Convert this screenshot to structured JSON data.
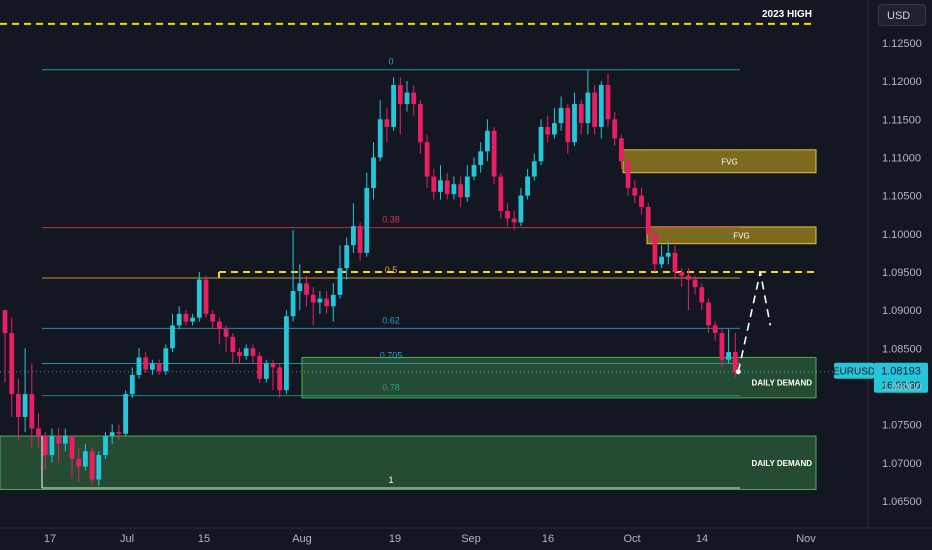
{
  "currency_button": "USD",
  "chart_data": {
    "type": "candlestick",
    "symbol": "EURUSD",
    "last_price": "1.08193",
    "countdown": "16:08:30",
    "y_ticks": [
      "1.12500",
      "1.12000",
      "1.11500",
      "1.11000",
      "1.10500",
      "1.10000",
      "1.09500",
      "1.09000",
      "1.08500",
      "1.08000",
      "1.07500",
      "1.07000",
      "1.06500"
    ],
    "y_range": [
      1.0625,
      1.1305
    ],
    "x_ticks": [
      "17",
      "Jul",
      "15",
      "Aug",
      "19",
      "Sep",
      "16",
      "Oct",
      "14",
      "Nov"
    ],
    "high_line": {
      "label": "2023 HIGH",
      "price": 1.1275,
      "color": "#f5d90a"
    },
    "breakout_line": {
      "price": 1.095,
      "color": "#f5d90a"
    },
    "fib_levels": [
      {
        "label": "0",
        "price": 1.1215,
        "color": "#2a9ec7"
      },
      {
        "label": "0.38",
        "price": 1.1008,
        "color": "#e0314f"
      },
      {
        "label": "0.5",
        "price": 1.0942,
        "color": "#f0a040"
      },
      {
        "label": "0.62",
        "price": 1.0876,
        "color": "#2a9ec7"
      },
      {
        "label": "0.705",
        "price": 1.083,
        "color": "#2a9ec7"
      },
      {
        "label": "0.78",
        "price": 1.0788,
        "color": "#1f9d8a"
      },
      {
        "label": "1",
        "price": 1.0667,
        "color": "#ffffff"
      }
    ],
    "zones": [
      {
        "label": "FVG",
        "kind": "fvg",
        "top": 1.111,
        "bottom": 1.108,
        "x_start": 623,
        "x_end": 816,
        "label_pos": "center"
      },
      {
        "label": "FVG",
        "kind": "fvg",
        "top": 1.1009,
        "bottom": 1.0987,
        "x_start": 647,
        "x_end": 816,
        "label_pos": "center"
      },
      {
        "label": "DAILY DEMAND",
        "kind": "demand",
        "top": 1.0838,
        "bottom": 1.0785,
        "x_start": 302,
        "x_end": 816,
        "label_pos": "right"
      },
      {
        "label": "DAILY DEMAND",
        "kind": "demand",
        "top": 1.0735,
        "bottom": 1.0665,
        "x_start": 0,
        "x_end": 816,
        "label_pos": "right"
      }
    ],
    "candles": [
      [
        1.09,
        1.087,
        1.089,
        1.0805
      ],
      [
        1.087,
        1.079,
        1.089,
        1.076
      ],
      [
        1.079,
        1.076,
        1.081,
        1.073
      ],
      [
        1.076,
        1.079,
        1.085,
        1.074
      ],
      [
        1.079,
        1.0745,
        1.083,
        1.072
      ],
      [
        1.0745,
        1.0735,
        1.0765,
        1.072
      ],
      [
        1.0735,
        1.071,
        1.074,
        1.069
      ],
      [
        1.071,
        1.0735,
        1.0745,
        1.07
      ],
      [
        1.0735,
        1.0725,
        1.0745,
        1.07
      ],
      [
        1.0725,
        1.0735,
        1.0745,
        1.0715
      ],
      [
        1.0735,
        1.0705,
        1.0735,
        1.068
      ],
      [
        1.0705,
        1.0695,
        1.072,
        1.0675
      ],
      [
        1.0695,
        1.0715,
        1.0725,
        1.069
      ],
      [
        1.0715,
        1.0678,
        1.072,
        1.067
      ],
      [
        1.0678,
        1.071,
        1.0715,
        1.067
      ],
      [
        1.071,
        1.0735,
        1.074,
        1.0705
      ],
      [
        1.0735,
        1.074,
        1.075,
        1.0725
      ],
      [
        1.074,
        1.0738,
        1.075,
        1.073
      ],
      [
        1.0738,
        1.079,
        1.0795,
        1.0735
      ],
      [
        1.079,
        1.0815,
        1.0825,
        1.0785
      ],
      [
        1.0815,
        1.0838,
        1.085,
        1.081
      ],
      [
        1.0838,
        1.0822,
        1.0845,
        1.0818
      ],
      [
        1.0822,
        1.083,
        1.0835,
        1.0815
      ],
      [
        1.083,
        1.082,
        1.0835,
        1.0815
      ],
      [
        1.082,
        1.085,
        1.0855,
        1.0815
      ],
      [
        1.085,
        1.088,
        1.0895,
        1.0845
      ],
      [
        1.088,
        1.0895,
        1.0905,
        1.0875
      ],
      [
        1.0895,
        1.0885,
        1.09,
        1.088
      ],
      [
        1.0885,
        1.089,
        1.0895,
        1.088
      ],
      [
        1.089,
        1.094,
        1.095,
        1.0885
      ],
      [
        1.094,
        1.0895,
        1.0945,
        1.089
      ],
      [
        1.0895,
        1.0885,
        1.09,
        1.0875
      ],
      [
        1.0885,
        1.0875,
        1.089,
        1.0855
      ],
      [
        1.0875,
        1.0865,
        1.088,
        1.0845
      ],
      [
        1.0865,
        1.0845,
        1.087,
        1.083
      ],
      [
        1.0845,
        1.084,
        1.085,
        1.083
      ],
      [
        1.084,
        1.085,
        1.0855,
        1.0835
      ],
      [
        1.085,
        1.084,
        1.0855,
        1.083
      ],
      [
        1.084,
        1.081,
        1.0845,
        1.0805
      ],
      [
        1.081,
        1.083,
        1.0835,
        1.0805
      ],
      [
        1.083,
        1.0825,
        1.0835,
        1.0795
      ],
      [
        1.0825,
        1.0795,
        1.083,
        1.0785
      ],
      [
        1.0795,
        1.0892,
        1.09,
        1.079
      ],
      [
        1.0892,
        1.0925,
        1.1005,
        1.0885
      ],
      [
        1.0925,
        1.0935,
        1.096,
        1.09
      ],
      [
        1.0935,
        1.092,
        1.0945,
        1.0905
      ],
      [
        1.092,
        1.091,
        1.093,
        1.088
      ],
      [
        1.091,
        1.0915,
        1.0925,
        1.0895
      ],
      [
        1.0915,
        1.0905,
        1.0925,
        1.0895
      ],
      [
        1.0905,
        1.092,
        1.0935,
        1.0885
      ],
      [
        1.092,
        1.0955,
        1.0985,
        1.0915
      ],
      [
        1.0955,
        1.0985,
        1.0995,
        1.094
      ],
      [
        1.0985,
        1.101,
        1.104,
        1.0975
      ],
      [
        1.101,
        1.0975,
        1.1015,
        1.0965
      ],
      [
        1.0975,
        1.106,
        1.108,
        1.097
      ],
      [
        1.106,
        1.11,
        1.112,
        1.1045
      ],
      [
        1.11,
        1.115,
        1.1175,
        1.1095
      ],
      [
        1.115,
        1.114,
        1.1165,
        1.112
      ],
      [
        1.114,
        1.1195,
        1.1205,
        1.1135
      ],
      [
        1.1195,
        1.117,
        1.1205,
        1.113
      ],
      [
        1.117,
        1.1185,
        1.12,
        1.116
      ],
      [
        1.1185,
        1.117,
        1.1195,
        1.1155
      ],
      [
        1.117,
        1.112,
        1.1175,
        1.1105
      ],
      [
        1.112,
        1.1075,
        1.113,
        1.106
      ],
      [
        1.1075,
        1.1055,
        1.1085,
        1.1045
      ],
      [
        1.1055,
        1.107,
        1.109,
        1.1045
      ],
      [
        1.107,
        1.1052,
        1.108,
        1.1045
      ],
      [
        1.1052,
        1.1065,
        1.1075,
        1.1045
      ],
      [
        1.1065,
        1.1048,
        1.1075,
        1.1035
      ],
      [
        1.1048,
        1.1075,
        1.109,
        1.1042
      ],
      [
        1.1075,
        1.109,
        1.11,
        1.107
      ],
      [
        1.109,
        1.1108,
        1.112,
        1.108
      ],
      [
        1.1108,
        1.1135,
        1.115,
        1.1095
      ],
      [
        1.1135,
        1.1075,
        1.114,
        1.1065
      ],
      [
        1.1075,
        1.103,
        1.108,
        1.102
      ],
      [
        1.103,
        1.102,
        1.104,
        1.101
      ],
      [
        1.102,
        1.1015,
        1.103,
        1.1005
      ],
      [
        1.1015,
        1.105,
        1.106,
        1.101
      ],
      [
        1.105,
        1.1075,
        1.1085,
        1.1045
      ],
      [
        1.1075,
        1.1095,
        1.1105,
        1.107
      ],
      [
        1.1095,
        1.114,
        1.115,
        1.109
      ],
      [
        1.114,
        1.113,
        1.1155,
        1.112
      ],
      [
        1.113,
        1.1145,
        1.1165,
        1.1125
      ],
      [
        1.1145,
        1.1165,
        1.118,
        1.1135
      ],
      [
        1.1165,
        1.112,
        1.117,
        1.1105
      ],
      [
        1.112,
        1.117,
        1.1185,
        1.1115
      ],
      [
        1.117,
        1.1145,
        1.1175,
        1.113
      ],
      [
        1.1145,
        1.1185,
        1.1215,
        1.113
      ],
      [
        1.1185,
        1.114,
        1.1195,
        1.113
      ],
      [
        1.114,
        1.1195,
        1.12,
        1.1125
      ],
      [
        1.1195,
        1.115,
        1.121,
        1.114
      ],
      [
        1.115,
        1.1125,
        1.116,
        1.1115
      ],
      [
        1.1125,
        1.1095,
        1.113,
        1.1085
      ],
      [
        1.1095,
        1.106,
        1.11,
        1.105
      ],
      [
        1.106,
        1.105,
        1.107,
        1.104
      ],
      [
        1.105,
        1.1035,
        1.106,
        1.1025
      ],
      [
        1.1035,
        1.1,
        1.104,
        1.099
      ],
      [
        1.1,
        1.096,
        1.1005,
        1.095
      ],
      [
        1.096,
        1.097,
        1.0985,
        1.0955
      ],
      [
        1.097,
        1.0975,
        1.099,
        1.096
      ],
      [
        1.0975,
        1.095,
        1.0985,
        1.094
      ],
      [
        1.095,
        1.0945,
        1.0955,
        1.093
      ],
      [
        1.0945,
        1.094,
        1.0955,
        1.09
      ],
      [
        1.094,
        1.093,
        1.0945,
        1.092
      ],
      [
        1.093,
        1.091,
        1.0935,
        1.09
      ],
      [
        1.091,
        1.088,
        1.0915,
        1.087
      ],
      [
        1.088,
        1.087,
        1.0885,
        1.086
      ],
      [
        1.087,
        1.0835,
        1.0875,
        1.0825
      ],
      [
        1.0835,
        1.0845,
        1.0875,
        1.083
      ],
      [
        1.0845,
        1.0819,
        1.087,
        1.0812
      ]
    ],
    "projection": [
      [
        1.082,
        1.095,
        0.5
      ],
      [
        1.095,
        1.088,
        1.0
      ]
    ]
  }
}
